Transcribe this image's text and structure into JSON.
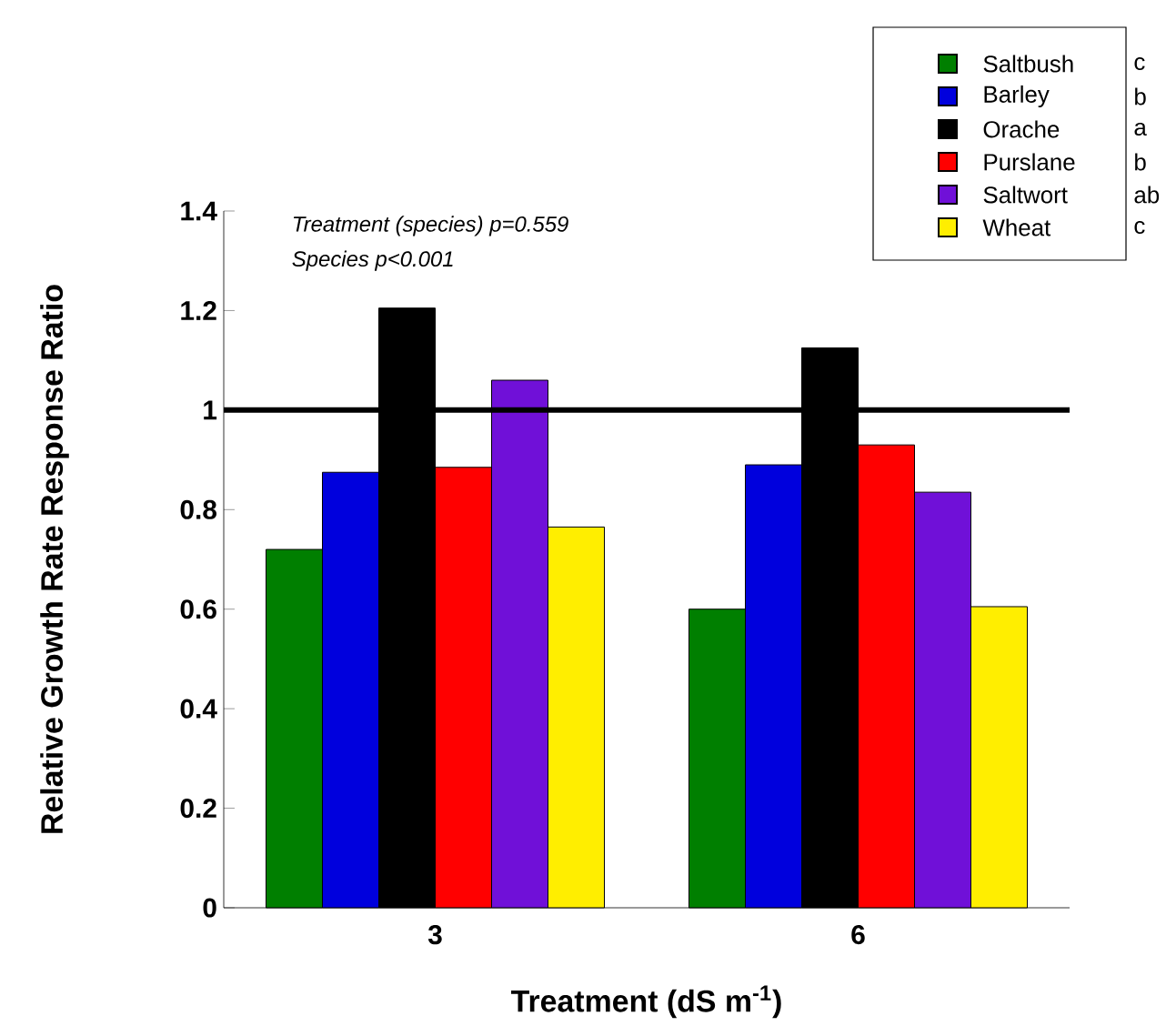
{
  "chart_data": {
    "type": "bar",
    "xlabel": "Treatment (dS m$^{-1}$)",
    "ylabel": "Relative Growth Rate Response Ratio",
    "categories": [
      "3",
      "6"
    ],
    "series": [
      {
        "name": "Saltbush",
        "color": "#007f00",
        "values": [
          0.72,
          0.6
        ]
      },
      {
        "name": "Barley",
        "color": "#0000dd",
        "values": [
          0.875,
          0.89
        ]
      },
      {
        "name": "Orache",
        "color": "#000000",
        "values": [
          1.205,
          1.125
        ]
      },
      {
        "name": "Purslane",
        "color": "#ff0000",
        "values": [
          0.885,
          0.93
        ]
      },
      {
        "name": "Saltwort",
        "color": "#7010d8",
        "values": [
          1.06,
          0.835
        ]
      },
      {
        "name": "Wheat",
        "color": "#ffee00",
        "values": [
          0.765,
          0.605
        ]
      }
    ],
    "ylim": [
      0,
      1.4
    ],
    "yticks": [
      0,
      0.2,
      0.4,
      0.6,
      0.8,
      1,
      1.2,
      1.4
    ],
    "ref_lines": [
      {
        "axis": "y",
        "value": 1,
        "color": "#000000"
      }
    ],
    "annotations": [
      "Treatment (species) p=0.559",
      "Species p<0.001",
      "c",
      "b",
      "a",
      "b",
      "ab",
      "c"
    ],
    "legend": "top right",
    "grid": false
  }
}
